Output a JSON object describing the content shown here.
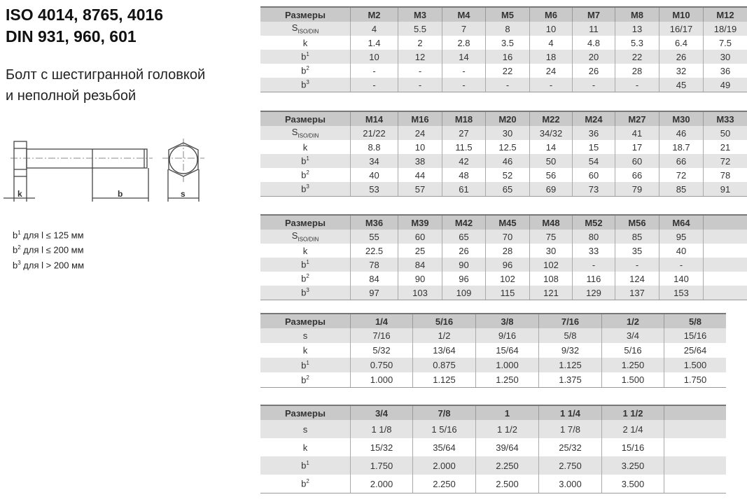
{
  "title": [
    "ISO 4014, 8765, 4016",
    "DIN 931, 960, 601"
  ],
  "subtitle": [
    "Болт с шестигранной головкой",
    "и неполной резьбой"
  ],
  "drawing_labels": {
    "k": "k",
    "b": "b",
    "s": "s"
  },
  "notes": [
    {
      "sup": "1",
      "text": " для l ≤ 125 мм"
    },
    {
      "sup": "2",
      "text": " для l ≤ 200 мм"
    },
    {
      "sup": "3",
      "text": " для l > 200 мм"
    }
  ],
  "note_prefix": "b",
  "tables": [
    {
      "header": "Размеры",
      "columns": [
        "M2",
        "M3",
        "M4",
        "M5",
        "M6",
        "M7",
        "M8",
        "M10",
        "M12"
      ],
      "rows": [
        {
          "label": "S",
          "sub": "ISO/DIN",
          "values": [
            "4",
            "5.5",
            "7",
            "8",
            "10",
            "11",
            "13",
            "16/17",
            "18/19"
          ]
        },
        {
          "label": "k",
          "values": [
            "1.4",
            "2",
            "2.8",
            "3.5",
            "4",
            "4.8",
            "5.3",
            "6.4",
            "7.5"
          ]
        },
        {
          "label": "b",
          "sup": "1",
          "values": [
            "10",
            "12",
            "14",
            "16",
            "18",
            "20",
            "22",
            "26",
            "30"
          ]
        },
        {
          "label": "b",
          "sup": "2",
          "values": [
            "-",
            "-",
            "-",
            "22",
            "24",
            "26",
            "28",
            "32",
            "36"
          ]
        },
        {
          "label": "b",
          "sup": "3",
          "values": [
            "-",
            "-",
            "-",
            "-",
            "-",
            "-",
            "-",
            "45",
            "49"
          ]
        }
      ]
    },
    {
      "header": "Размеры",
      "columns": [
        "M14",
        "M16",
        "M18",
        "M20",
        "M22",
        "M24",
        "M27",
        "M30",
        "M33"
      ],
      "rows": [
        {
          "label": "S",
          "sub": "ISO/DIN",
          "values": [
            "21/22",
            "24",
            "27",
            "30",
            "34/32",
            "36",
            "41",
            "46",
            "50"
          ]
        },
        {
          "label": "k",
          "values": [
            "8.8",
            "10",
            "11.5",
            "12.5",
            "14",
            "15",
            "17",
            "18.7",
            "21"
          ]
        },
        {
          "label": "b",
          "sup": "1",
          "values": [
            "34",
            "38",
            "42",
            "46",
            "50",
            "54",
            "60",
            "66",
            "72"
          ]
        },
        {
          "label": "b",
          "sup": "2",
          "values": [
            "40",
            "44",
            "48",
            "52",
            "56",
            "60",
            "66",
            "72",
            "78"
          ]
        },
        {
          "label": "b",
          "sup": "3",
          "values": [
            "53",
            "57",
            "61",
            "65",
            "69",
            "73",
            "79",
            "85",
            "91"
          ]
        }
      ]
    },
    {
      "header": "Размеры",
      "columns": [
        "M36",
        "M39",
        "M42",
        "M45",
        "M48",
        "M52",
        "M56",
        "M64",
        ""
      ],
      "rows": [
        {
          "label": "S",
          "sub": "ISO/DIN",
          "values": [
            "55",
            "60",
            "65",
            "70",
            "75",
            "80",
            "85",
            "95",
            ""
          ]
        },
        {
          "label": "k",
          "values": [
            "22.5",
            "25",
            "26",
            "28",
            "30",
            "33",
            "35",
            "40",
            ""
          ]
        },
        {
          "label": "b",
          "sup": "1",
          "values": [
            "78",
            "84",
            "90",
            "96",
            "102",
            "-",
            "-",
            "-",
            ""
          ]
        },
        {
          "label": "b",
          "sup": "2",
          "values": [
            "84",
            "90",
            "96",
            "102",
            "108",
            "116",
            "124",
            "140",
            ""
          ]
        },
        {
          "label": "b",
          "sup": "3",
          "values": [
            "97",
            "103",
            "109",
            "115",
            "121",
            "129",
            "137",
            "153",
            ""
          ]
        }
      ]
    },
    {
      "header": "Размеры",
      "columns": [
        "1/4",
        "5/16",
        "3/8",
        "7/16",
        "1/2",
        "5/8"
      ],
      "rows": [
        {
          "label": "s",
          "values": [
            "7/16",
            "1/2",
            "9/16",
            "5/8",
            "3/4",
            "15/16"
          ]
        },
        {
          "label": "k",
          "values": [
            "5/32",
            "13/64",
            "15/64",
            "9/32",
            "5/16",
            "25/64"
          ]
        },
        {
          "label": "b",
          "sup": "1",
          "values": [
            "0.750",
            "0.875",
            "1.000",
            "1.125",
            "1.250",
            "1.500"
          ]
        },
        {
          "label": "b",
          "sup": "2",
          "values": [
            "1.000",
            "1.125",
            "1.250",
            "1.375",
            "1.500",
            "1.750"
          ]
        }
      ]
    },
    {
      "header": "Размеры",
      "columns": [
        "3/4",
        "7/8",
        "1",
        "1 1/4",
        "1 1/2",
        ""
      ],
      "rows": [
        {
          "label": "s",
          "values": [
            "1 1/8",
            "1 5/16",
            "1 1/2",
            "1 7/8",
            "2 1/4",
            ""
          ]
        },
        {
          "label": "k",
          "values": [
            "15/32",
            "35/64",
            "39/64",
            "25/32",
            "15/16",
            ""
          ]
        },
        {
          "label": "b",
          "sup": "1",
          "values": [
            "1.750",
            "2.000",
            "2.250",
            "2.750",
            "3.250",
            ""
          ]
        },
        {
          "label": "b",
          "sup": "2",
          "values": [
            "2.000",
            "2.250",
            "2.500",
            "3.000",
            "3.500",
            ""
          ]
        }
      ]
    }
  ]
}
